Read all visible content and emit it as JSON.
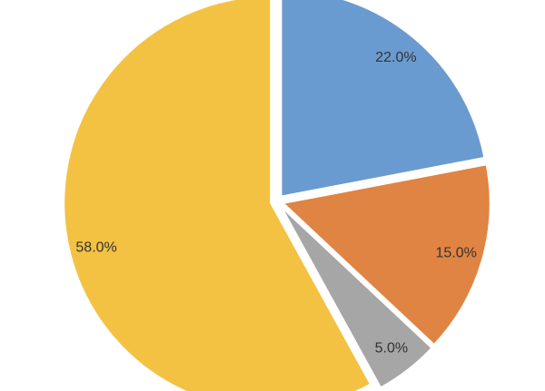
{
  "chart_data": {
    "type": "pie",
    "values": [
      22,
      15,
      5,
      58
    ],
    "value_labels": [
      "22.0%",
      "15.0%",
      "5.0%",
      "58.0%"
    ],
    "colors": [
      "#6a9bd0",
      "#e08443",
      "#a6a6a6",
      "#f4c242"
    ]
  }
}
